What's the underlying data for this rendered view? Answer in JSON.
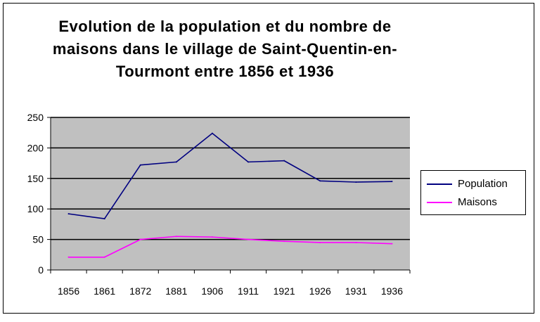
{
  "chart_data": {
    "type": "line",
    "title": "Evolution de la population et du nombre de maisons dans le village de Saint-Quentin-en-Tourmont entre 1856 et 1936",
    "title_lines": [
      "Evolution de la population et du nombre de",
      "maisons dans le village de Saint-Quentin-en-",
      "Tourmont entre 1856 et 1936"
    ],
    "categories": [
      "1856",
      "1861",
      "1872",
      "1881",
      "1906",
      "1911",
      "1921",
      "1926",
      "1931",
      "1936"
    ],
    "ylim": [
      0,
      250
    ],
    "yticks": [
      0,
      50,
      100,
      150,
      200,
      250
    ],
    "grid": true,
    "legend_position": "right",
    "plot_background": "#c0c0c0",
    "series": [
      {
        "name": "Population",
        "color": "#000080",
        "values": [
          92,
          84,
          172,
          177,
          224,
          177,
          179,
          146,
          144,
          145
        ]
      },
      {
        "name": "Maisons",
        "color": "#ff00ff",
        "values": [
          21,
          21,
          50,
          55,
          54,
          50,
          47,
          45,
          45,
          43
        ]
      }
    ]
  }
}
